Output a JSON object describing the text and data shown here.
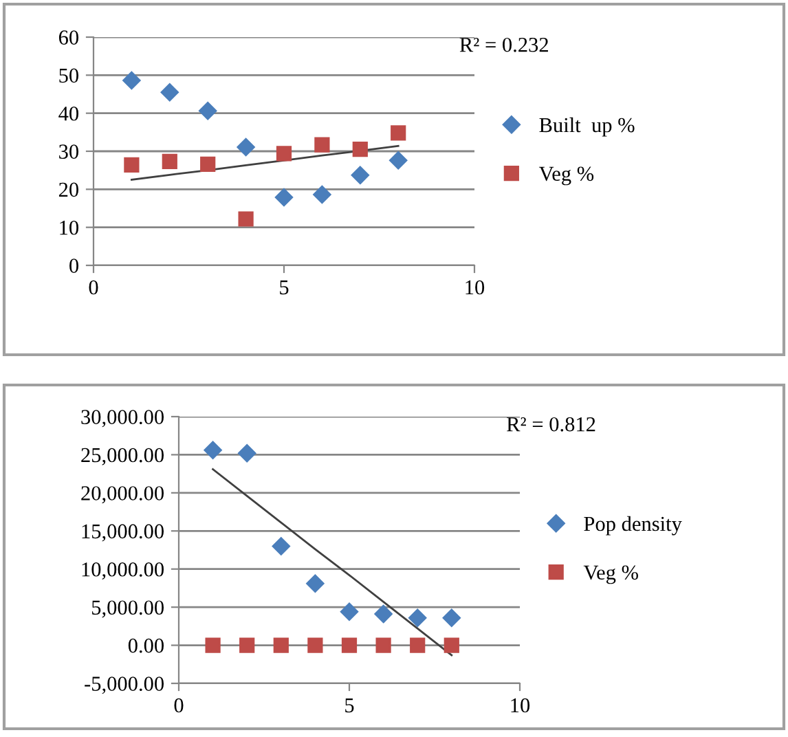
{
  "chart_data": [
    {
      "type": "scatter",
      "annotations": [
        "R² = 0.232"
      ],
      "xlim": [
        0,
        10
      ],
      "xticks": [
        0,
        5,
        10
      ],
      "ylim": [
        0,
        60
      ],
      "yticks": [
        0,
        10,
        20,
        30,
        40,
        50,
        60
      ],
      "grid": "y",
      "legend": "right",
      "x": [
        1,
        2,
        3,
        4,
        5,
        6,
        7,
        8
      ],
      "series": [
        {
          "name": "Built  up %",
          "color": "#4a7ebb",
          "marker": "diamond",
          "values": [
            48.6,
            45.5,
            40.6,
            31.1,
            17.9,
            18.6,
            23.7,
            27.6
          ]
        },
        {
          "name": "Veg %",
          "color": "#be4b48",
          "marker": "square",
          "values": [
            26.4,
            27.3,
            26.6,
            12.2,
            29.4,
            31.7,
            30.5,
            34.8
          ]
        },
        {
          "type": "line",
          "color": "#404040",
          "values": [
            22.5,
            23.8,
            25.0,
            26.3,
            27.6,
            28.9,
            30.1,
            31.4
          ]
        }
      ]
    },
    {
      "type": "scatter",
      "annotations": [
        "R² = 0.812"
      ],
      "xlim": [
        0,
        10
      ],
      "xticks": [
        0,
        5,
        10
      ],
      "ylim": [
        -5000,
        30000
      ],
      "yticks": [
        {
          "value": -5000,
          "label": "-5,000.00"
        },
        {
          "value": 0,
          "label": "0.00"
        },
        {
          "value": 5000,
          "label": "5,000.00"
        },
        {
          "value": 10000,
          "label": "10,000.00"
        },
        {
          "value": 15000,
          "label": "15,000.00"
        },
        {
          "value": 20000,
          "label": "20,000.00"
        },
        {
          "value": 25000,
          "label": "25,000.00"
        },
        {
          "value": 30000,
          "label": "30,000.00"
        }
      ],
      "grid": "y",
      "legend": "right",
      "x": [
        1,
        2,
        3,
        4,
        5,
        6,
        7,
        8
      ],
      "series": [
        {
          "name": "Pop density",
          "color": "#4a7ebb",
          "marker": "diamond",
          "values": [
            25600,
            25200,
            13000,
            8100,
            4400,
            4100,
            3600,
            3600
          ]
        },
        {
          "name": "Veg %",
          "color": "#be4b48",
          "marker": "square",
          "values": [
            0,
            0,
            0,
            0,
            0,
            0,
            0,
            0
          ]
        },
        {
          "type": "line",
          "color": "#404040",
          "values": [
            23100,
            19600,
            16100,
            12600,
            9200,
            5700,
            2200,
            -1300
          ]
        }
      ]
    }
  ]
}
